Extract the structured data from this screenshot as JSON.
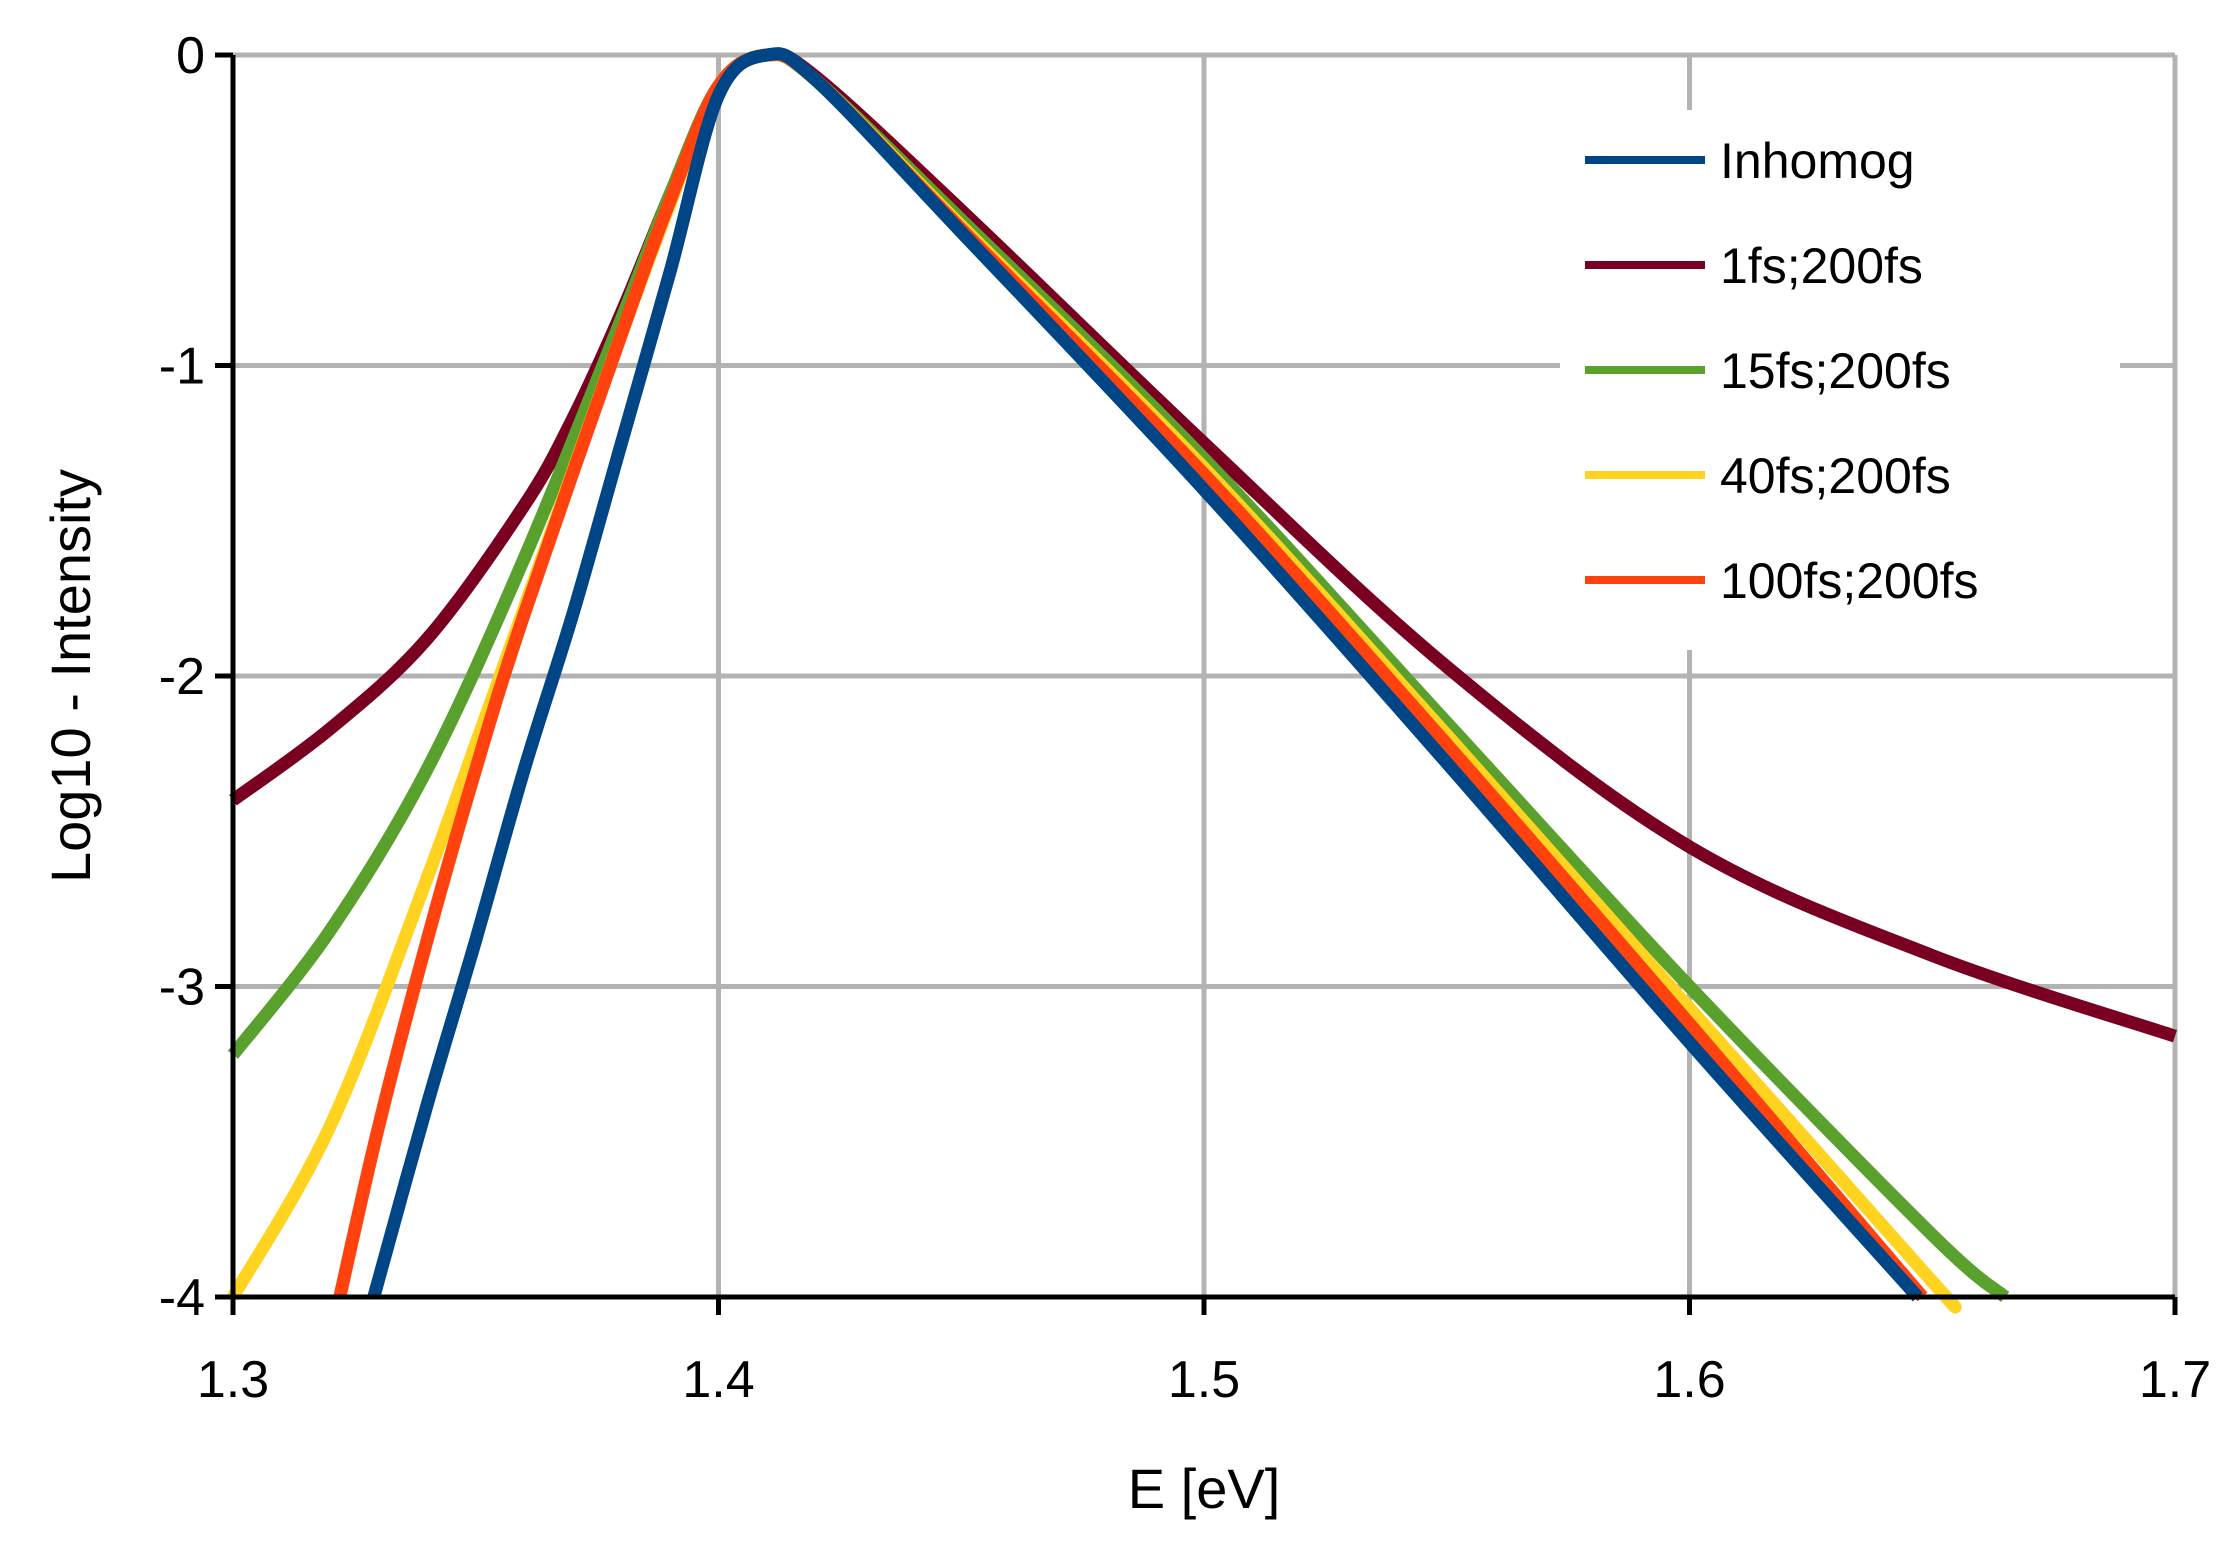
{
  "chart_data": {
    "type": "line",
    "title": "",
    "xlabel": "E [eV]",
    "ylabel": "Log10 - Intensity",
    "xlim": [
      1.3,
      1.7
    ],
    "ylim": [
      -4,
      0
    ],
    "grid": true,
    "legend_position": "top-right",
    "x_ticks": [
      "1.3",
      "1.4",
      "1.5",
      "1.6",
      "1.7"
    ],
    "y_ticks": [
      "0",
      "-1",
      "-2",
      "-3",
      "-4"
    ],
    "series": [
      {
        "name": "1fs;200fs",
        "color": "#7a0021",
        "x": [
          1.3,
          1.32,
          1.34,
          1.36,
          1.37,
          1.38,
          1.39,
          1.4,
          1.41,
          1.42,
          1.45,
          1.5,
          1.55,
          1.6,
          1.65,
          1.7
        ],
        "y": [
          -2.4,
          -2.17,
          -1.88,
          -1.45,
          -1.17,
          -0.83,
          -0.45,
          -0.1,
          0.0,
          -0.07,
          -0.5,
          -1.25,
          -1.97,
          -2.55,
          -2.9,
          -3.16
        ]
      },
      {
        "name": "15fs;200fs",
        "color": "#5aa02c",
        "x": [
          1.3,
          1.32,
          1.34,
          1.36,
          1.38,
          1.39,
          1.4,
          1.41,
          1.42,
          1.45,
          1.5,
          1.55,
          1.6,
          1.65,
          1.665
        ],
        "y": [
          -3.22,
          -2.82,
          -2.3,
          -1.62,
          -0.85,
          -0.45,
          -0.1,
          0.0,
          -0.08,
          -0.53,
          -1.3,
          -2.15,
          -3.0,
          -3.8,
          -4.0
        ]
      },
      {
        "name": "40fs;200fs",
        "color": "#ffd320",
        "x": [
          1.3,
          1.32,
          1.34,
          1.36,
          1.38,
          1.39,
          1.4,
          1.41,
          1.42,
          1.45,
          1.5,
          1.55,
          1.6,
          1.65,
          1.653
        ],
        "y": [
          -4.0,
          -3.45,
          -2.65,
          -1.78,
          -0.9,
          -0.48,
          -0.1,
          0.0,
          -0.08,
          -0.55,
          -1.33,
          -2.19,
          -3.07,
          -3.95,
          -4.0
        ]
      },
      {
        "name": "100fs;200fs",
        "color": "#ff420e",
        "x": [
          1.322,
          1.33,
          1.34,
          1.35,
          1.36,
          1.38,
          1.39,
          1.4,
          1.41,
          1.42,
          1.45,
          1.5,
          1.55,
          1.6,
          1.648
        ],
        "y": [
          -4.0,
          -3.45,
          -2.85,
          -2.3,
          -1.8,
          -0.9,
          -0.47,
          -0.1,
          0.0,
          -0.08,
          -0.56,
          -1.35,
          -2.22,
          -3.12,
          -4.0
        ]
      },
      {
        "name": "Inhomog",
        "color": "#004586",
        "x": [
          1.329,
          1.34,
          1.35,
          1.36,
          1.37,
          1.38,
          1.39,
          1.4,
          1.41,
          1.42,
          1.45,
          1.5,
          1.55,
          1.6,
          1.647
        ],
        "y": [
          -4.0,
          -3.38,
          -2.85,
          -2.3,
          -1.8,
          -1.25,
          -0.7,
          -0.13,
          0.0,
          -0.08,
          -0.57,
          -1.4,
          -2.28,
          -3.18,
          -4.0
        ]
      }
    ],
    "legend_order": [
      "Inhomog",
      "1fs;200fs",
      "15fs;200fs",
      "40fs;200fs",
      "100fs;200fs"
    ]
  }
}
